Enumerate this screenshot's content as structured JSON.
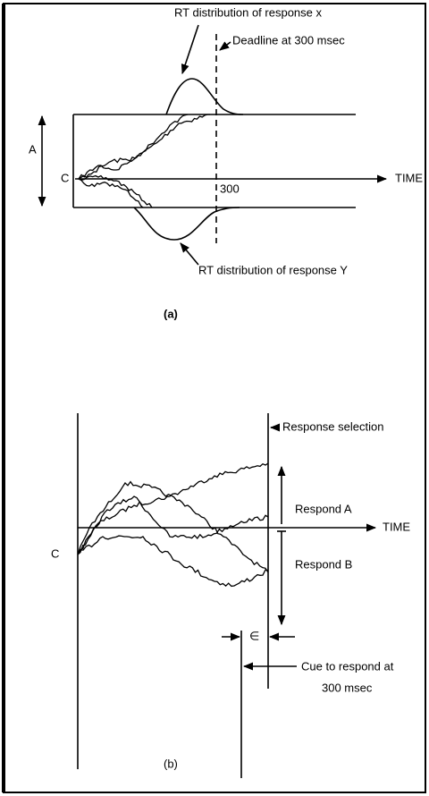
{
  "panel_a": {
    "top_label": "RT distribution of response x",
    "deadline_label": "Deadline at 300 msec",
    "boundary_label": "A",
    "start_label": "C",
    "tick_label": "300",
    "axis_label": "TIME",
    "bottom_label": "RT distribution of response Y",
    "caption": "(a)"
  },
  "panel_b": {
    "selection_label": "Response selection",
    "respond_a": "Respond A",
    "axis_label": "TIME",
    "start_label": "C",
    "respond_b": "Respond B",
    "epsilon": "∈",
    "cue_label": [
      "Cue to respond at",
      "300 msec"
    ],
    "caption": "(b)"
  }
}
